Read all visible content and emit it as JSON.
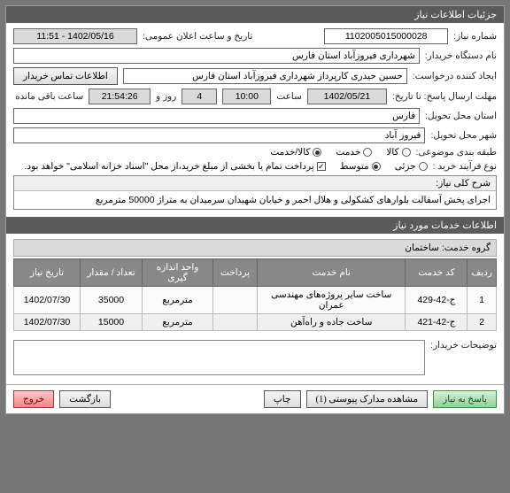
{
  "header": "جزئیات اطلاعات نیاز",
  "labels": {
    "need_no": "شماره نیاز:",
    "announce_dt": "تاریخ و ساعت اعلان عمومی:",
    "buyer_name": "نام دستگاه خریدار:",
    "creator": "ایجاد کننده درخواست:",
    "contact_btn": "اطلاعات تماس خریدار",
    "deadline": "مهلت ارسال پاسخ: تا تاریخ:",
    "hour": "ساعت",
    "day_and": "روز و",
    "remaining": "ساعت باقی مانده",
    "delivery_province": "استان محل تحویل:",
    "delivery_city": "شهر محل تحویل:",
    "category": "طبقه بندی موضوعی:",
    "cat_goods": "کالا",
    "cat_services": "خدمت",
    "cat_mixed": "کالا/خدمت",
    "buy_type": "نوع فرآیند خرید :",
    "buy_partial": "جزئی",
    "buy_medium": "متوسط",
    "pay_note": "پرداخت تمام یا بخشی از مبلغ خرید،از محل \"اسناد خزانه اسلامی\" خواهد بود.",
    "desc_header": "شرح کلی نیاز:",
    "services_info_header": "اطلاعات خدمات مورد نیاز",
    "service_group": "گروه خدمت:",
    "buyer_notes": "توضیحات خریدار:"
  },
  "values": {
    "need_no": "1102005015000028",
    "announce_dt": "1402/05/16 - 11:51",
    "buyer_name": "شهرداری فیروزآباد استان فارس",
    "creator": "حسین حیدری کارپرداز شهرداری فیروزآباد استان فارس",
    "deadline_date": "1402/05/21",
    "deadline_time": "10:00",
    "days": "4",
    "remaining_time": "21:54:26",
    "province": "فارس",
    "city": "فیروز آباد",
    "desc": "اجرای پخش آسفالت بلوارهای کشکولی و هلال احمر و خیابان شهیدان سرمیدان به متراژ 50000 مترمربع",
    "service_group_val": "ساختمان"
  },
  "table": {
    "headers": [
      "ردیف",
      "کد خدمت",
      "نام خدمت",
      "پرداخت",
      "واحد اندازه گیری",
      "تعداد / مقدار",
      "تاریخ نیاز"
    ],
    "rows": [
      [
        "1",
        "ج-42-429",
        "ساخت سایر پروژه‌های مهندسی عمران",
        "",
        "مترمربع",
        "35000",
        "1402/07/30"
      ],
      [
        "2",
        "ج-42-421",
        "ساخت جاده و راه‌آهن",
        "",
        "مترمربع",
        "15000",
        "1402/07/30"
      ]
    ]
  },
  "buttons": {
    "reply": "پاسخ به نیاز",
    "attachments": "مشاهده مدارک پیوستی (1)",
    "print": "چاپ",
    "back": "بازگشت",
    "exit": "خروج"
  },
  "colors": {
    "header_bg": "#5a5a5a",
    "table_th": "#888888"
  }
}
